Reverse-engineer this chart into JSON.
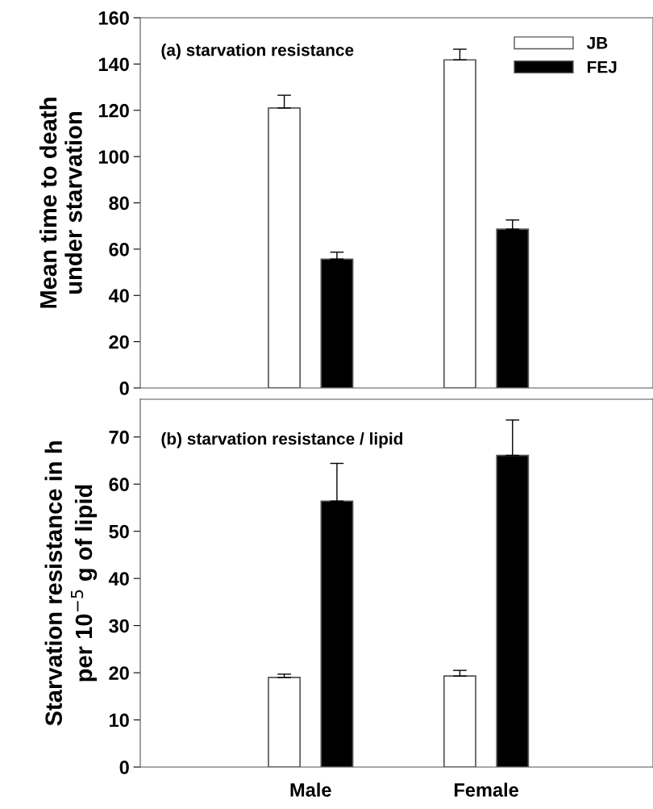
{
  "chart_data": [
    {
      "type": "bar",
      "categories": [
        null,
        null
      ],
      "ylabel": "Mean time to death\nunder starvation",
      "ylim": [
        0,
        160
      ],
      "yticks": [
        0,
        20,
        40,
        60,
        80,
        100,
        120,
        140,
        160
      ],
      "tick_labels": "y",
      "legend": "top right",
      "annotations": [
        "(a) starvation resistance"
      ],
      "series": [
        {
          "name": "JB",
          "color": "#ffffff",
          "values": [
            121,
            141.8
          ],
          "errors": [
            5.5,
            4.6
          ]
        },
        {
          "name": "FEJ",
          "color": "#000000",
          "values": [
            55.7,
            68.6
          ],
          "errors": [
            3,
            4
          ]
        }
      ]
    },
    {
      "type": "bar",
      "categories": [
        "Male",
        "Female"
      ],
      "ylabel": "Starvation resistance in h\nper 10$^{−5}$ g of lipid",
      "ylim": [
        0,
        78
      ],
      "yticks": [
        0,
        10,
        20,
        30,
        40,
        50,
        60,
        70
      ],
      "annotations": [
        "(b) starvation resistance / lipid"
      ],
      "series": [
        {
          "color": "#ffffff",
          "values": [
            19,
            19.3
          ],
          "errors": [
            0.7,
            1.2
          ]
        },
        {
          "color": "#000000",
          "values": [
            56.4,
            66.1
          ],
          "errors": [
            8,
            7.5
          ]
        }
      ]
    }
  ]
}
